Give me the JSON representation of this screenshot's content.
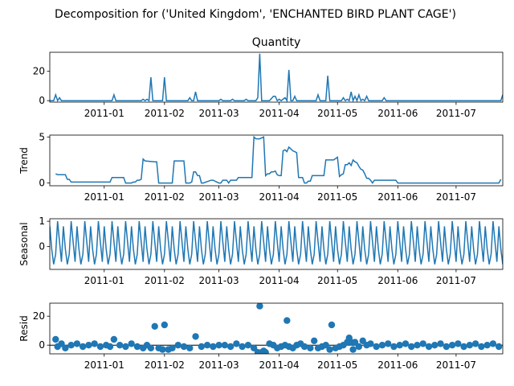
{
  "figure_title": "Decomposition for ('United Kingdom', 'ENCHANTED BIRD PLANT CAGE')",
  "line_color": "#1f77b4",
  "chart_data": [
    {
      "type": "line",
      "panel": "observed",
      "title": "Quantity",
      "ylabel": "",
      "ylim": [
        -1,
        33
      ],
      "yticks": [
        0,
        20
      ],
      "xlim": [
        "2010-12-04",
        "2011-07-25"
      ],
      "xticks": [
        "2011-01",
        "2011-02",
        "2011-03",
        "2011-04",
        "2011-05",
        "2011-06",
        "2011-07"
      ],
      "x": [
        "2010-12-04",
        "2010-12-06",
        "2010-12-07",
        "2010-12-08",
        "2010-12-09",
        "2010-12-10",
        "2010-12-12",
        "2011-01-04",
        "2011-01-05",
        "2011-01-06",
        "2011-01-07",
        "2011-01-20",
        "2011-01-21",
        "2011-01-22",
        "2011-01-23",
        "2011-01-24",
        "2011-01-25",
        "2011-01-26",
        "2011-01-27",
        "2011-01-28",
        "2011-01-29",
        "2011-01-30",
        "2011-01-31",
        "2011-02-01",
        "2011-02-02",
        "2011-02-03",
        "2011-02-04",
        "2011-02-13",
        "2011-02-14",
        "2011-02-15",
        "2011-02-16",
        "2011-02-17",
        "2011-02-18",
        "2011-02-19",
        "2011-02-20",
        "2011-02-21",
        "2011-03-01",
        "2011-03-02",
        "2011-03-03",
        "2011-03-07",
        "2011-03-08",
        "2011-03-09",
        "2011-03-14",
        "2011-03-15",
        "2011-03-16",
        "2011-03-17",
        "2011-03-18",
        "2011-03-19",
        "2011-03-20",
        "2011-03-21",
        "2011-03-22",
        "2011-03-23",
        "2011-03-24",
        "2011-03-27",
        "2011-03-29",
        "2011-03-30",
        "2011-03-31",
        "2011-04-01",
        "2011-04-02",
        "2011-04-04",
        "2011-04-05",
        "2011-04-06",
        "2011-04-07",
        "2011-04-08",
        "2011-04-09",
        "2011-04-10",
        "2011-04-11",
        "2011-04-12",
        "2011-04-13",
        "2011-04-19",
        "2011-04-20",
        "2011-04-21",
        "2011-04-22",
        "2011-04-23",
        "2011-04-25",
        "2011-04-26",
        "2011-04-27",
        "2011-04-28",
        "2011-04-29",
        "2011-05-03",
        "2011-05-04",
        "2011-05-05",
        "2011-05-06",
        "2011-05-07",
        "2011-05-08",
        "2011-05-09",
        "2011-05-10",
        "2011-05-11",
        "2011-05-12",
        "2011-05-13",
        "2011-05-14",
        "2011-05-15",
        "2011-05-16",
        "2011-05-17",
        "2011-05-18",
        "2011-05-19",
        "2011-05-24",
        "2011-05-25",
        "2011-05-26",
        "2011-07-24",
        "2011-07-25"
      ],
      "values": [
        0,
        0,
        4,
        0,
        2,
        0,
        0,
        0,
        0,
        4,
        0,
        0,
        1,
        0,
        1,
        0,
        16,
        0,
        0,
        0,
        0,
        0,
        0,
        16,
        0,
        0,
        0,
        0,
        2,
        0,
        0,
        6,
        0,
        0,
        0,
        0,
        0,
        1,
        0,
        0,
        1,
        0,
        0,
        1,
        0,
        0,
        0,
        0,
        0,
        2,
        32,
        0,
        0,
        0,
        3,
        3,
        0,
        1,
        0,
        2,
        0,
        21,
        0,
        0,
        3,
        0,
        0,
        0,
        0,
        0,
        0,
        4,
        0,
        0,
        0,
        17,
        0,
        0,
        0,
        0,
        2,
        0,
        1,
        0,
        6,
        0,
        3,
        0,
        4,
        0,
        1,
        0,
        3,
        0,
        0,
        0,
        0,
        2,
        0,
        0,
        4
      ]
    },
    {
      "type": "line",
      "panel": "trend",
      "title": "",
      "ylabel": "Trend",
      "ylim": [
        -0.3,
        5.2
      ],
      "yticks": [
        0,
        5
      ],
      "xlim": [
        "2010-12-04",
        "2011-07-25"
      ],
      "xticks": [
        "2011-01",
        "2011-02",
        "2011-03",
        "2011-04",
        "2011-05",
        "2011-06",
        "2011-07"
      ],
      "x": [
        "2010-12-07",
        "2010-12-08",
        "2010-12-11",
        "2010-12-12",
        "2010-12-13",
        "2010-12-14",
        "2010-12-15",
        "2011-01-04",
        "2011-01-05",
        "2011-01-11",
        "2011-01-12",
        "2011-01-15",
        "2011-01-16",
        "2011-01-17",
        "2011-01-18",
        "2011-01-19",
        "2011-01-20",
        "2011-01-21",
        "2011-01-22",
        "2011-01-27",
        "2011-01-28",
        "2011-01-29",
        "2011-02-05",
        "2011-02-06",
        "2011-02-07",
        "2011-02-11",
        "2011-02-12",
        "2011-02-13",
        "2011-02-14",
        "2011-02-15",
        "2011-02-16",
        "2011-02-17",
        "2011-02-18",
        "2011-02-19",
        "2011-02-20",
        "2011-02-21",
        "2011-02-25",
        "2011-02-26",
        "2011-03-01",
        "2011-03-02",
        "2011-03-03",
        "2011-03-05",
        "2011-03-06",
        "2011-03-07",
        "2011-03-10",
        "2011-03-11",
        "2011-03-12",
        "2011-03-18",
        "2011-03-19",
        "2011-03-20",
        "2011-03-21",
        "2011-03-22",
        "2011-03-24",
        "2011-03-25",
        "2011-03-26",
        "2011-03-27",
        "2011-03-28",
        "2011-03-29",
        "2011-03-30",
        "2011-03-31",
        "2011-04-01",
        "2011-04-02",
        "2011-04-03",
        "2011-04-04",
        "2011-04-05",
        "2011-04-06",
        "2011-04-07",
        "2011-04-08",
        "2011-04-09",
        "2011-04-10",
        "2011-04-11",
        "2011-04-12",
        "2011-04-13",
        "2011-04-14",
        "2011-04-15",
        "2011-04-16",
        "2011-04-17",
        "2011-04-18",
        "2011-04-19",
        "2011-04-20",
        "2011-04-21",
        "2011-04-24",
        "2011-04-25",
        "2011-04-26",
        "2011-04-27",
        "2011-04-28",
        "2011-04-29",
        "2011-05-01",
        "2011-05-02",
        "2011-05-03",
        "2011-05-04",
        "2011-05-05",
        "2011-05-06",
        "2011-05-07",
        "2011-05-08",
        "2011-05-09",
        "2011-05-10",
        "2011-05-11",
        "2011-05-12",
        "2011-05-13",
        "2011-05-14",
        "2011-05-15",
        "2011-05-16",
        "2011-05-17",
        "2011-05-18",
        "2011-05-19",
        "2011-05-20",
        "2011-05-21",
        "2011-05-22",
        "2011-05-23",
        "2011-05-24",
        "2011-05-31",
        "2011-06-01",
        "2011-07-23",
        "2011-07-24"
      ],
      "values": [
        1.0,
        0.9,
        0.9,
        0.9,
        0.4,
        0.4,
        0.1,
        0.1,
        0.6,
        0.6,
        0.0,
        0.0,
        0.1,
        0.1,
        0.3,
        0.3,
        0.4,
        2.6,
        2.4,
        2.3,
        2.3,
        0.0,
        0.0,
        2.4,
        2.4,
        2.4,
        0.0,
        0.0,
        0.0,
        0.1,
        1.2,
        1.2,
        0.8,
        0.8,
        0.0,
        0.0,
        0.3,
        0.3,
        0.0,
        0.0,
        0.3,
        0.3,
        0.0,
        0.3,
        0.3,
        0.6,
        0.6,
        0.6,
        5.0,
        4.8,
        4.8,
        4.8,
        5.0,
        0.8,
        1.0,
        1.0,
        1.2,
        1.2,
        1.3,
        0.9,
        0.8,
        0.8,
        3.5,
        3.6,
        3.4,
        3.9,
        3.7,
        3.5,
        3.4,
        3.3,
        0.6,
        0.6,
        0.6,
        0.0,
        0.0,
        0.2,
        0.2,
        0.8,
        0.8,
        0.8,
        0.8,
        0.8,
        2.5,
        2.5,
        2.5,
        2.5,
        2.5,
        2.8,
        0.7,
        0.9,
        1.0,
        2.0,
        2.0,
        2.2,
        1.9,
        2.5,
        2.3,
        2.2,
        1.8,
        1.5,
        1.4,
        1.0,
        0.5,
        0.5,
        0.3,
        0.0,
        0.3,
        0.3,
        0.3,
        0.3,
        0.3,
        0.3,
        0.0,
        0.0,
        0.4
      ]
    },
    {
      "type": "line",
      "panel": "seasonal",
      "title": "",
      "ylabel": "Seasonal",
      "ylim": [
        -0.9,
        1.1
      ],
      "yticks": [
        0,
        1
      ],
      "xlim": [
        "2010-12-04",
        "2011-07-25"
      ],
      "xticks": [
        "2011-01",
        "2011-02",
        "2011-03",
        "2011-04",
        "2011-05",
        "2011-06",
        "2011-07"
      ],
      "start": "2010-12-04",
      "end": "2011-07-25",
      "period_days": 7,
      "pattern": [
        0.8,
        -0.1,
        -0.7,
        -0.3,
        1.0,
        0.2,
        -0.6
      ]
    },
    {
      "type": "scatter",
      "panel": "resid",
      "title": "",
      "ylabel": "Resid",
      "ylim": [
        -6,
        29
      ],
      "yticks": [
        0,
        20
      ],
      "xlim": [
        "2010-12-04",
        "2011-07-25"
      ],
      "xticks": [
        "2011-01",
        "2011-02",
        "2011-03",
        "2011-04",
        "2011-05",
        "2011-06",
        "2011-07"
      ],
      "baseline": 0,
      "x": [
        "2010-12-07",
        "2010-12-08",
        "2010-12-10",
        "2010-12-12",
        "2010-12-15",
        "2010-12-18",
        "2010-12-21",
        "2010-12-24",
        "2010-12-27",
        "2010-12-30",
        "2011-01-02",
        "2011-01-04",
        "2011-01-06",
        "2011-01-09",
        "2011-01-12",
        "2011-01-15",
        "2011-01-18",
        "2011-01-21",
        "2011-01-23",
        "2011-01-25",
        "2011-01-27",
        "2011-01-29",
        "2011-01-31",
        "2011-02-01",
        "2011-02-03",
        "2011-02-05",
        "2011-02-08",
        "2011-02-11",
        "2011-02-14",
        "2011-02-17",
        "2011-02-20",
        "2011-02-23",
        "2011-02-26",
        "2011-03-01",
        "2011-03-04",
        "2011-03-07",
        "2011-03-10",
        "2011-03-13",
        "2011-03-16",
        "2011-03-19",
        "2011-03-21",
        "2011-03-22",
        "2011-03-23",
        "2011-03-24",
        "2011-03-25",
        "2011-03-27",
        "2011-03-29",
        "2011-03-31",
        "2011-04-02",
        "2011-04-04",
        "2011-04-05",
        "2011-04-06",
        "2011-04-08",
        "2011-04-10",
        "2011-04-12",
        "2011-04-14",
        "2011-04-17",
        "2011-04-19",
        "2011-04-21",
        "2011-04-23",
        "2011-04-25",
        "2011-04-27",
        "2011-04-28",
        "2011-04-30",
        "2011-05-02",
        "2011-05-04",
        "2011-05-06",
        "2011-05-07",
        "2011-05-08",
        "2011-05-09",
        "2011-05-10",
        "2011-05-12",
        "2011-05-14",
        "2011-05-16",
        "2011-05-18",
        "2011-05-21",
        "2011-05-24",
        "2011-05-27",
        "2011-05-30",
        "2011-06-02",
        "2011-06-05",
        "2011-06-08",
        "2011-06-11",
        "2011-06-14",
        "2011-06-17",
        "2011-06-20",
        "2011-06-23",
        "2011-06-26",
        "2011-06-29",
        "2011-07-02",
        "2011-07-05",
        "2011-07-08",
        "2011-07-11",
        "2011-07-14",
        "2011-07-17",
        "2011-07-20",
        "2011-07-23"
      ],
      "values": [
        4,
        -1,
        1,
        -2,
        0,
        1,
        -1,
        0,
        1,
        -1,
        0,
        -1,
        4,
        0,
        -1,
        1,
        -1,
        -2,
        0,
        -2,
        13,
        -2,
        -3,
        14,
        -3,
        -2,
        0,
        -1,
        -2,
        6,
        -1,
        0,
        -1,
        0,
        0,
        -1,
        1,
        -1,
        0,
        -2,
        -5,
        27,
        -5,
        -4,
        -5,
        1,
        0,
        -2,
        -1,
        0,
        17,
        -1,
        -2,
        0,
        1,
        -1,
        -2,
        3,
        -2,
        -1,
        0,
        -3,
        14,
        -2,
        -1,
        0,
        2,
        5,
        2,
        -3,
        2,
        -1,
        3,
        0,
        1,
        -1,
        0,
        1,
        -1,
        0,
        1,
        -1,
        0,
        1,
        -1,
        0,
        1,
        -1,
        0,
        1,
        -1,
        0,
        1,
        -1,
        0,
        1,
        -1
      ]
    }
  ]
}
